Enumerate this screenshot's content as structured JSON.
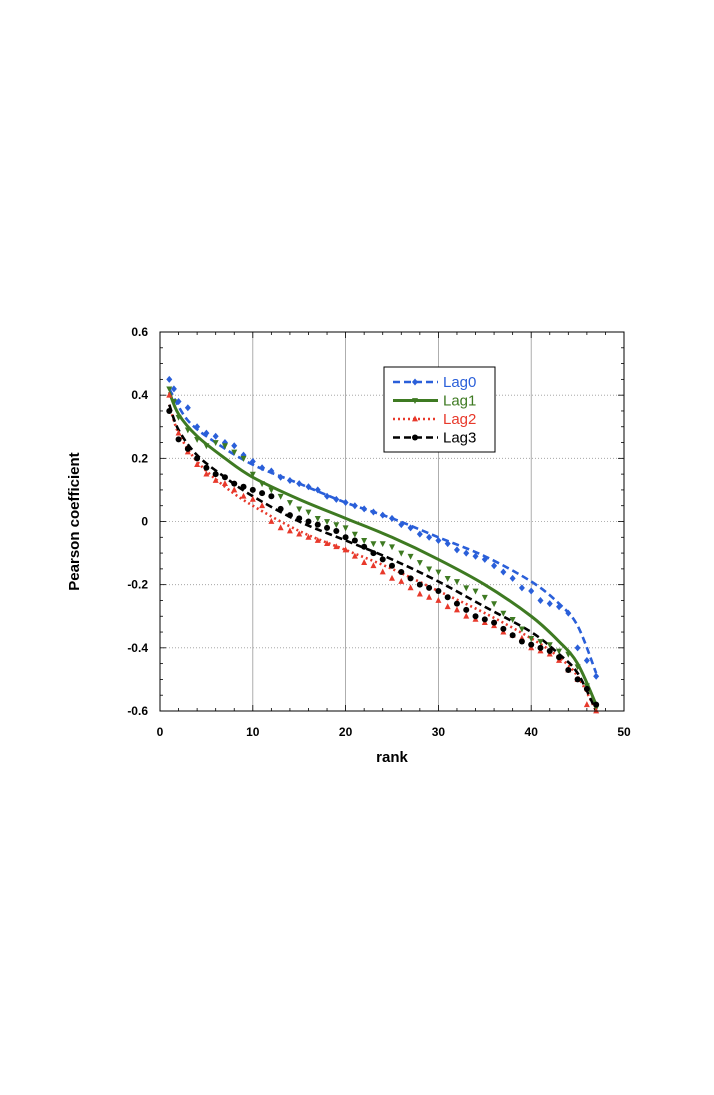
{
  "chart_data": {
    "type": "scatter",
    "xlabel": "rank",
    "ylabel": "Pearson coefficient",
    "xlim": [
      0,
      50
    ],
    "ylim": [
      -0.6,
      0.6
    ],
    "xticks": [
      "0",
      "10",
      "20",
      "30",
      "40",
      "50"
    ],
    "yticks": [
      "-0.6",
      "-0.4",
      "-0.2",
      "0",
      "0.2",
      "0.4",
      "0.6"
    ],
    "grid": true,
    "legend_position": "top-right",
    "series": [
      {
        "name": "Lag0",
        "color": "#2a5fd9",
        "marker": "diamond",
        "line_style": "dashed",
        "points": [
          [
            1,
            0.45
          ],
          [
            1.5,
            0.42
          ],
          [
            2,
            0.38
          ],
          [
            3,
            0.36
          ],
          [
            4,
            0.3
          ],
          [
            5,
            0.28
          ],
          [
            6,
            0.27
          ],
          [
            7,
            0.25
          ],
          [
            8,
            0.24
          ],
          [
            9,
            0.21
          ],
          [
            10,
            0.19
          ],
          [
            11,
            0.17
          ],
          [
            12,
            0.16
          ],
          [
            13,
            0.14
          ],
          [
            14,
            0.13
          ],
          [
            15,
            0.12
          ],
          [
            16,
            0.11
          ],
          [
            17,
            0.1
          ],
          [
            18,
            0.08
          ],
          [
            19,
            0.07
          ],
          [
            20,
            0.06
          ],
          [
            21,
            0.05
          ],
          [
            22,
            0.04
          ],
          [
            23,
            0.03
          ],
          [
            24,
            0.02
          ],
          [
            25,
            0.01
          ],
          [
            26,
            -0.01
          ],
          [
            27,
            -0.02
          ],
          [
            28,
            -0.04
          ],
          [
            29,
            -0.05
          ],
          [
            30,
            -0.06
          ],
          [
            31,
            -0.07
          ],
          [
            32,
            -0.09
          ],
          [
            33,
            -0.1
          ],
          [
            34,
            -0.11
          ],
          [
            35,
            -0.12
          ],
          [
            36,
            -0.14
          ],
          [
            37,
            -0.16
          ],
          [
            38,
            -0.18
          ],
          [
            39,
            -0.21
          ],
          [
            40,
            -0.22
          ],
          [
            41,
            -0.25
          ],
          [
            42,
            -0.26
          ],
          [
            43,
            -0.27
          ],
          [
            44,
            -0.29
          ],
          [
            45,
            -0.4
          ],
          [
            46,
            -0.44
          ],
          [
            47,
            -0.49
          ]
        ],
        "fit": [
          [
            1,
            0.42
          ],
          [
            3,
            0.32
          ],
          [
            6,
            0.25
          ],
          [
            10,
            0.18
          ],
          [
            15,
            0.12
          ],
          [
            20,
            0.06
          ],
          [
            25,
            0.01
          ],
          [
            30,
            -0.05
          ],
          [
            35,
            -0.11
          ],
          [
            40,
            -0.19
          ],
          [
            43,
            -0.26
          ],
          [
            45,
            -0.33
          ],
          [
            47,
            -0.48
          ]
        ]
      },
      {
        "name": "Lag1",
        "color": "#3e7a22",
        "marker": "triangle-down",
        "line_style": "solid",
        "points": [
          [
            1,
            0.42
          ],
          [
            1.5,
            0.38
          ],
          [
            2,
            0.33
          ],
          [
            3,
            0.29
          ],
          [
            4,
            0.26
          ],
          [
            5,
            0.24
          ],
          [
            6,
            0.25
          ],
          [
            7,
            0.24
          ],
          [
            8,
            0.22
          ],
          [
            9,
            0.2
          ],
          [
            10,
            0.15
          ],
          [
            11,
            0.12
          ],
          [
            12,
            0.1
          ],
          [
            13,
            0.08
          ],
          [
            14,
            0.06
          ],
          [
            15,
            0.04
          ],
          [
            16,
            0.03
          ],
          [
            17,
            0.01
          ],
          [
            18,
            0.0
          ],
          [
            19,
            -0.01
          ],
          [
            20,
            -0.02
          ],
          [
            21,
            -0.04
          ],
          [
            22,
            -0.06
          ],
          [
            23,
            -0.07
          ],
          [
            24,
            -0.07
          ],
          [
            25,
            -0.08
          ],
          [
            26,
            -0.1
          ],
          [
            27,
            -0.11
          ],
          [
            28,
            -0.13
          ],
          [
            29,
            -0.15
          ],
          [
            30,
            -0.16
          ],
          [
            31,
            -0.18
          ],
          [
            32,
            -0.19
          ],
          [
            33,
            -0.21
          ],
          [
            34,
            -0.22
          ],
          [
            35,
            -0.24
          ],
          [
            36,
            -0.26
          ],
          [
            37,
            -0.29
          ],
          [
            38,
            -0.31
          ],
          [
            39,
            -0.34
          ],
          [
            40,
            -0.37
          ],
          [
            41,
            -0.38
          ],
          [
            42,
            -0.39
          ],
          [
            43,
            -0.41
          ],
          [
            44,
            -0.42
          ],
          [
            45,
            -0.46
          ],
          [
            46,
            -0.52
          ],
          [
            47,
            -0.59
          ]
        ],
        "fit": [
          [
            1,
            0.41
          ],
          [
            2,
            0.34
          ],
          [
            4,
            0.27
          ],
          [
            7,
            0.2
          ],
          [
            10,
            0.14
          ],
          [
            15,
            0.07
          ],
          [
            20,
            0.01
          ],
          [
            25,
            -0.05
          ],
          [
            30,
            -0.12
          ],
          [
            35,
            -0.2
          ],
          [
            40,
            -0.3
          ],
          [
            43,
            -0.38
          ],
          [
            45,
            -0.45
          ],
          [
            47,
            -0.58
          ]
        ]
      },
      {
        "name": "Lag2",
        "color": "#e8392b",
        "marker": "triangle-up",
        "line_style": "dotted",
        "points": [
          [
            1,
            0.4
          ],
          [
            2,
            0.28
          ],
          [
            3,
            0.22
          ],
          [
            4,
            0.18
          ],
          [
            5,
            0.15
          ],
          [
            6,
            0.13
          ],
          [
            7,
            0.12
          ],
          [
            8,
            0.1
          ],
          [
            9,
            0.08
          ],
          [
            10,
            0.07
          ],
          [
            11,
            0.05
          ],
          [
            12,
            0.0
          ],
          [
            13,
            -0.02
          ],
          [
            14,
            -0.03
          ],
          [
            15,
            -0.04
          ],
          [
            16,
            -0.05
          ],
          [
            17,
            -0.06
          ],
          [
            18,
            -0.07
          ],
          [
            19,
            -0.08
          ],
          [
            20,
            -0.09
          ],
          [
            21,
            -0.11
          ],
          [
            22,
            -0.13
          ],
          [
            23,
            -0.14
          ],
          [
            24,
            -0.16
          ],
          [
            25,
            -0.18
          ],
          [
            26,
            -0.19
          ],
          [
            27,
            -0.21
          ],
          [
            28,
            -0.23
          ],
          [
            29,
            -0.24
          ],
          [
            30,
            -0.25
          ],
          [
            31,
            -0.27
          ],
          [
            32,
            -0.28
          ],
          [
            33,
            -0.3
          ],
          [
            34,
            -0.31
          ],
          [
            35,
            -0.32
          ],
          [
            36,
            -0.33
          ],
          [
            37,
            -0.35
          ],
          [
            38,
            -0.36
          ],
          [
            39,
            -0.37
          ],
          [
            40,
            -0.4
          ],
          [
            41,
            -0.41
          ],
          [
            42,
            -0.42
          ],
          [
            43,
            -0.44
          ],
          [
            44,
            -0.47
          ],
          [
            45,
            -0.5
          ],
          [
            46,
            -0.58
          ],
          [
            47,
            -0.6
          ]
        ],
        "fit": [
          [
            1,
            0.37
          ],
          [
            2,
            0.28
          ],
          [
            4,
            0.19
          ],
          [
            7,
            0.11
          ],
          [
            10,
            0.05
          ],
          [
            15,
            -0.03
          ],
          [
            20,
            -0.09
          ],
          [
            25,
            -0.15
          ],
          [
            30,
            -0.22
          ],
          [
            35,
            -0.29
          ],
          [
            40,
            -0.37
          ],
          [
            43,
            -0.43
          ],
          [
            45,
            -0.49
          ],
          [
            47,
            -0.6
          ]
        ]
      },
      {
        "name": "Lag3",
        "color": "#000000",
        "marker": "circle",
        "line_style": "dashed",
        "points": [
          [
            1,
            0.35
          ],
          [
            2,
            0.26
          ],
          [
            3,
            0.23
          ],
          [
            4,
            0.2
          ],
          [
            5,
            0.17
          ],
          [
            6,
            0.15
          ],
          [
            7,
            0.14
          ],
          [
            8,
            0.12
          ],
          [
            9,
            0.11
          ],
          [
            10,
            0.1
          ],
          [
            11,
            0.09
          ],
          [
            12,
            0.08
          ],
          [
            13,
            0.04
          ],
          [
            14,
            0.02
          ],
          [
            15,
            0.01
          ],
          [
            16,
            0.0
          ],
          [
            17,
            -0.01
          ],
          [
            18,
            -0.02
          ],
          [
            19,
            -0.03
          ],
          [
            20,
            -0.05
          ],
          [
            21,
            -0.06
          ],
          [
            22,
            -0.08
          ],
          [
            23,
            -0.1
          ],
          [
            24,
            -0.12
          ],
          [
            25,
            -0.14
          ],
          [
            26,
            -0.16
          ],
          [
            27,
            -0.18
          ],
          [
            28,
            -0.2
          ],
          [
            29,
            -0.21
          ],
          [
            30,
            -0.22
          ],
          [
            31,
            -0.24
          ],
          [
            32,
            -0.26
          ],
          [
            33,
            -0.28
          ],
          [
            34,
            -0.3
          ],
          [
            35,
            -0.31
          ],
          [
            36,
            -0.32
          ],
          [
            37,
            -0.34
          ],
          [
            38,
            -0.36
          ],
          [
            39,
            -0.38
          ],
          [
            40,
            -0.39
          ],
          [
            41,
            -0.4
          ],
          [
            42,
            -0.41
          ],
          [
            43,
            -0.43
          ],
          [
            44,
            -0.47
          ],
          [
            45,
            -0.5
          ],
          [
            46,
            -0.53
          ],
          [
            47,
            -0.58
          ]
        ],
        "fit": [
          [
            1,
            0.37
          ],
          [
            2,
            0.29
          ],
          [
            4,
            0.21
          ],
          [
            7,
            0.14
          ],
          [
            10,
            0.08
          ],
          [
            15,
            0.0
          ],
          [
            20,
            -0.06
          ],
          [
            25,
            -0.12
          ],
          [
            30,
            -0.19
          ],
          [
            35,
            -0.27
          ],
          [
            40,
            -0.35
          ],
          [
            43,
            -0.42
          ],
          [
            45,
            -0.48
          ],
          [
            47,
            -0.6
          ]
        ]
      }
    ]
  }
}
